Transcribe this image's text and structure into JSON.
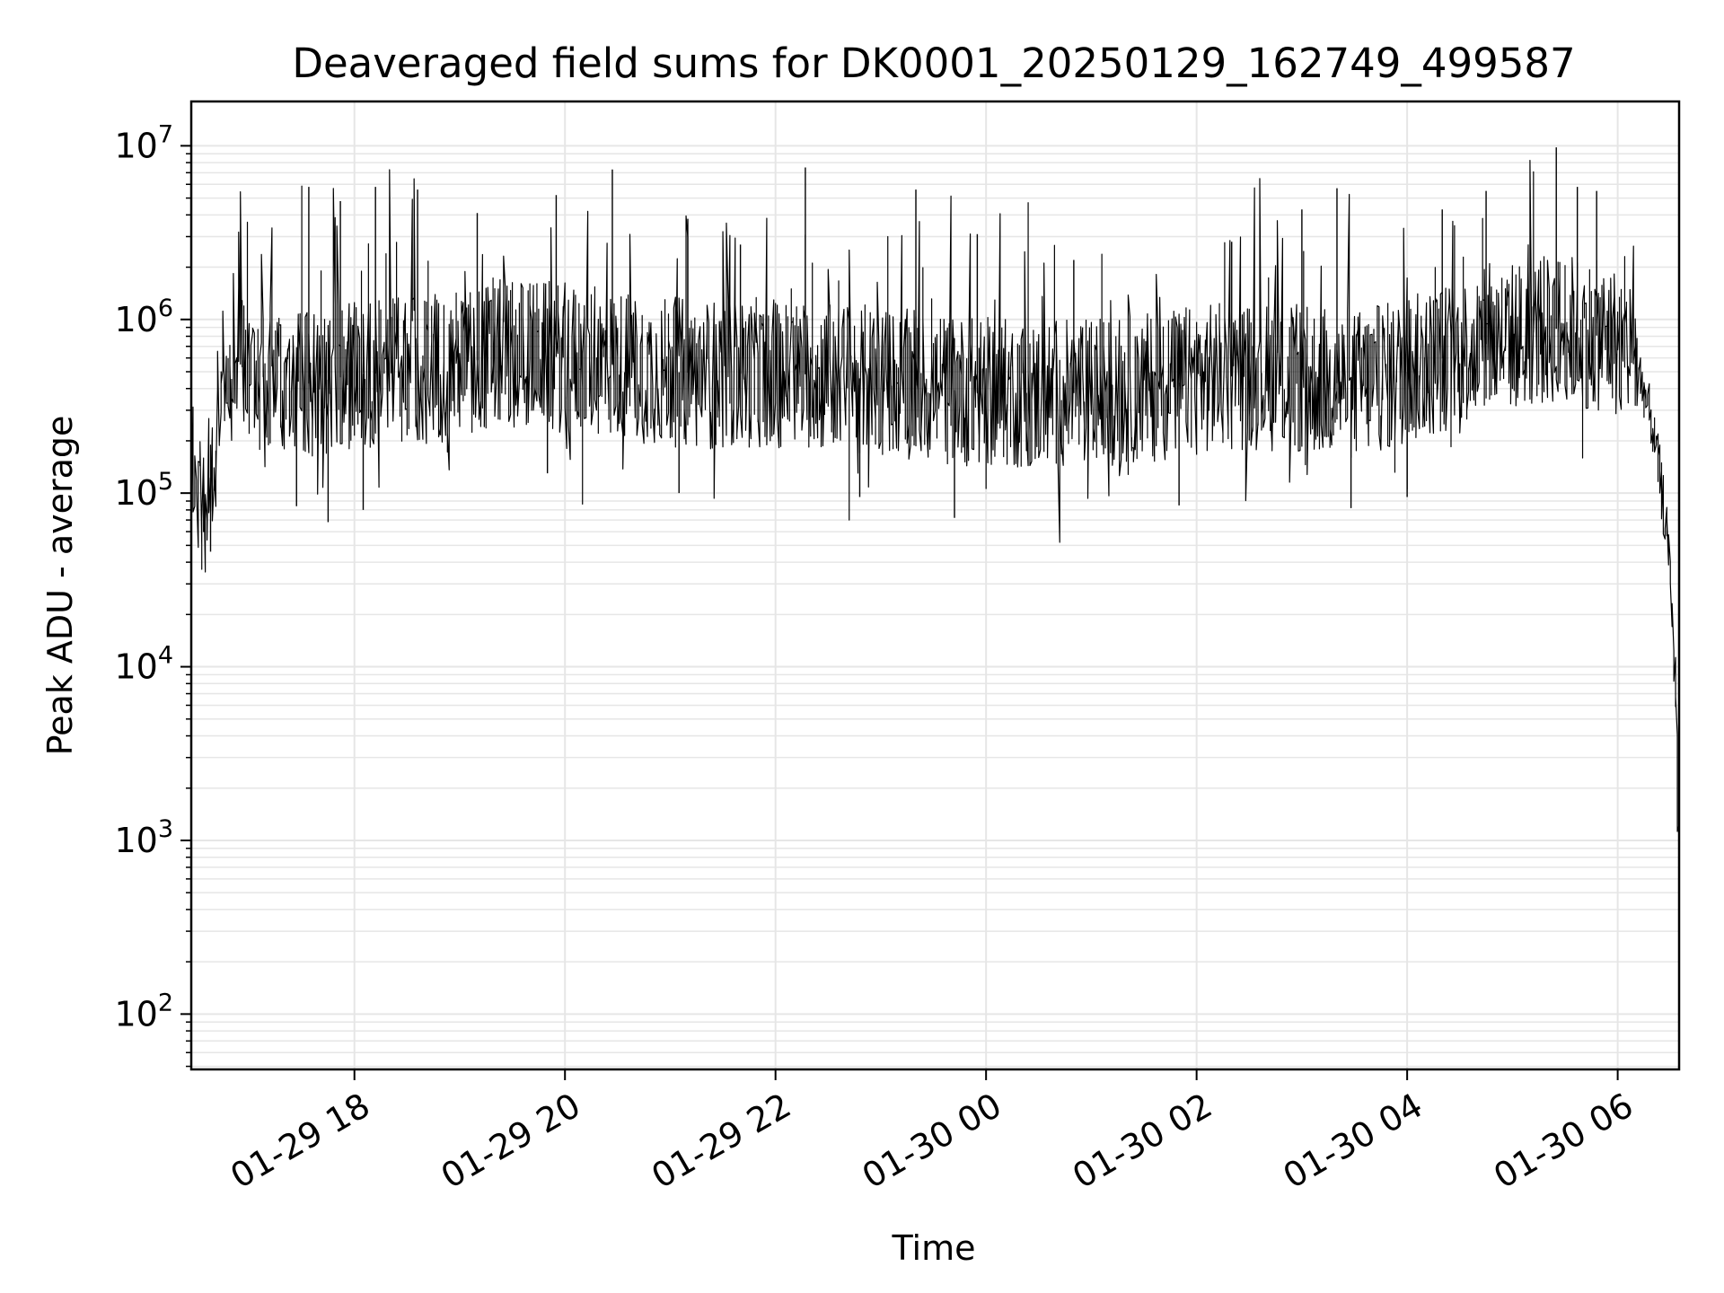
{
  "chart_data": {
    "type": "line",
    "title": "Deaveraged field sums for DK0001_20250129_162749_499587",
    "xlabel": "Time",
    "ylabel": "Peak ADU - average",
    "yscale": "log",
    "grid": true,
    "ylim": [
      48,
      18000000
    ],
    "xlim": [
      "2025-01-29 16:27",
      "2025-01-30 06:35"
    ],
    "x_ticks": [
      {
        "value": "2025-01-29 18:00",
        "label": "01-29 18"
      },
      {
        "value": "2025-01-29 20:00",
        "label": "01-29 20"
      },
      {
        "value": "2025-01-29 22:00",
        "label": "01-29 22"
      },
      {
        "value": "2025-01-30 00:00",
        "label": "01-30 00"
      },
      {
        "value": "2025-01-30 02:00",
        "label": "01-30 02"
      },
      {
        "value": "2025-01-30 04:00",
        "label": "01-30 04"
      },
      {
        "value": "2025-01-30 06:00",
        "label": "01-30 06"
      }
    ],
    "y_ticks": [
      {
        "value": 100,
        "base": "10",
        "exp": "2"
      },
      {
        "value": 1000,
        "base": "10",
        "exp": "3"
      },
      {
        "value": 10000,
        "base": "10",
        "exp": "4"
      },
      {
        "value": 100000,
        "base": "10",
        "exp": "5"
      },
      {
        "value": 1000000,
        "base": "10",
        "exp": "6"
      },
      {
        "value": 10000000,
        "base": "10",
        "exp": "7"
      }
    ],
    "line_color": "#000000",
    "grid_color": "#e6e6e6",
    "series": [
      {
        "x": [
          "2025-01-29 16:27",
          "2025-01-29 16:30",
          "2025-01-29 16:33",
          "2025-01-29 16:36",
          "2025-01-29 16:40",
          "2025-01-29 16:45",
          "2025-01-29 16:50",
          "2025-01-29 16:55",
          "2025-01-29 17:00",
          "2025-01-29 17:10",
          "2025-01-29 17:20",
          "2025-01-29 17:30",
          "2025-01-29 17:45",
          "2025-01-29 18:00",
          "2025-01-29 18:30",
          "2025-01-29 19:00",
          "2025-01-29 19:30",
          "2025-01-29 20:00",
          "2025-01-29 20:30",
          "2025-01-29 21:00",
          "2025-01-29 21:30",
          "2025-01-29 22:00",
          "2025-01-29 22:30",
          "2025-01-29 23:00",
          "2025-01-29 23:30",
          "2025-01-30 00:00",
          "2025-01-30 00:30",
          "2025-01-30 01:00",
          "2025-01-30 01:30",
          "2025-01-30 02:00",
          "2025-01-30 02:30",
          "2025-01-30 03:00",
          "2025-01-30 03:30",
          "2025-01-30 04:00",
          "2025-01-30 04:30",
          "2025-01-30 05:00",
          "2025-01-30 05:30",
          "2025-01-30 06:00",
          "2025-01-30 06:10",
          "2025-01-30 06:15",
          "2025-01-30 06:20",
          "2025-01-30 06:25",
          "2025-01-30 06:30",
          "2025-01-30 06:32",
          "2025-01-30 06:34",
          "2025-01-30 06:35"
        ],
        "y": [
          200000,
          110000,
          80000,
          100000,
          150000,
          400000,
          700000,
          800000,
          550000,
          450000,
          400000,
          420000,
          450000,
          480000,
          500000,
          550000,
          650000,
          600000,
          550000,
          500000,
          480000,
          500000,
          470000,
          450000,
          400000,
          380000,
          370000,
          380000,
          400000,
          450000,
          480000,
          450000,
          420000,
          500000,
          650000,
          800000,
          900000,
          750000,
          650000,
          400000,
          250000,
          120000,
          40000,
          15000,
          5000,
          900
        ]
      }
    ],
    "spikes": [
      {
        "x": "2025-01-29 17:34",
        "y": 5800000
      },
      {
        "x": "2025-01-29 17:52",
        "y": 4800000
      },
      {
        "x": "2025-01-29 18:12",
        "y": 5800000
      },
      {
        "x": "2025-01-29 18:36",
        "y": 5600000
      },
      {
        "x": "2025-01-29 19:10",
        "y": 4100000
      },
      {
        "x": "2025-01-29 19:55",
        "y": 5200000
      },
      {
        "x": "2025-01-29 20:27",
        "y": 7300000
      },
      {
        "x": "2025-01-29 21:10",
        "y": 3800000
      },
      {
        "x": "2025-01-29 21:40",
        "y": 2700000
      },
      {
        "x": "2025-01-29 22:17",
        "y": 7500000
      },
      {
        "x": "2025-01-29 23:20",
        "y": 5600000
      },
      {
        "x": "2025-01-29 23:55",
        "y": 3100000
      },
      {
        "x": "2025-01-30 00:50",
        "y": 2200000
      },
      {
        "x": "2025-01-30 02:20",
        "y": 2800000
      },
      {
        "x": "2025-01-30 03:00",
        "y": 4300000
      },
      {
        "x": "2025-01-30 03:20",
        "y": 5700000
      },
      {
        "x": "2025-01-30 04:20",
        "y": 4300000
      },
      {
        "x": "2025-01-30 04:45",
        "y": 5500000
      },
      {
        "x": "2025-01-30 05:25",
        "y": 9800000
      },
      {
        "x": "2025-01-30 05:37",
        "y": 5800000
      },
      {
        "x": "2025-01-30 05:48",
        "y": 5500000
      }
    ],
    "dips": [
      {
        "x": "2025-01-29 16:38",
        "y": 46000
      },
      {
        "x": "2025-01-29 17:45",
        "y": 68000
      },
      {
        "x": "2025-01-29 17:27",
        "y": 84000
      },
      {
        "x": "2025-01-29 18:05",
        "y": 80000
      },
      {
        "x": "2025-01-29 19:50",
        "y": 130000
      },
      {
        "x": "2025-01-29 21:05",
        "y": 100000
      },
      {
        "x": "2025-01-29 22:48",
        "y": 95000
      },
      {
        "x": "2025-01-29 23:42",
        "y": 72000
      },
      {
        "x": "2025-01-30 01:50",
        "y": 85000
      },
      {
        "x": "2025-01-30 03:28",
        "y": 82000
      },
      {
        "x": "2025-01-30 04:00",
        "y": 95000
      }
    ]
  }
}
